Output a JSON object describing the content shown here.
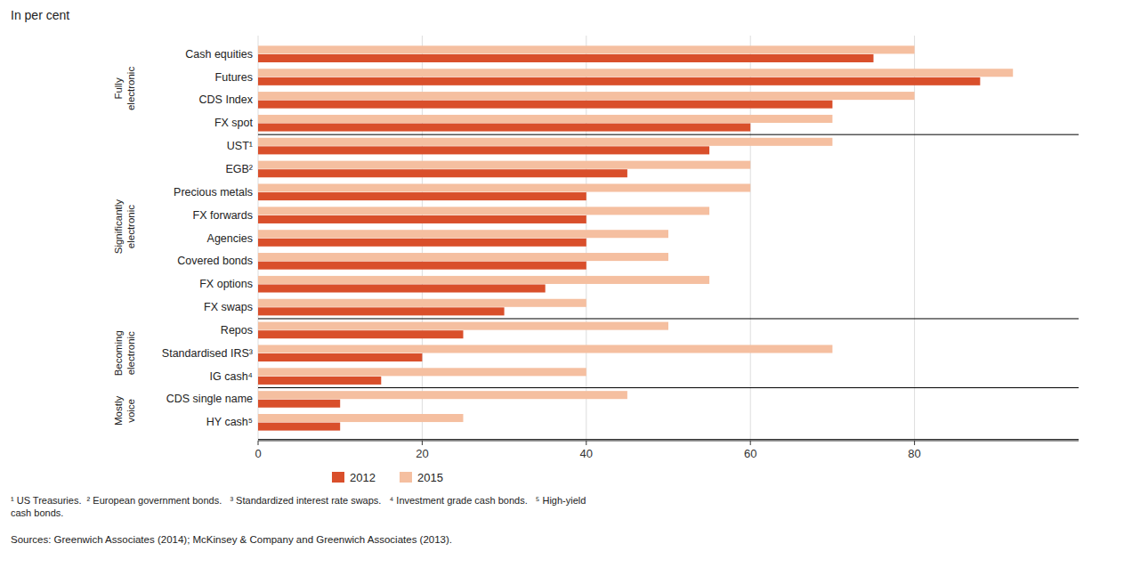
{
  "chart_data": {
    "type": "bar",
    "orientation": "horizontal",
    "title": "In per cent",
    "categories": [
      "Cash equities",
      "Futures",
      "CDS Index",
      "FX spot",
      "UST¹",
      "EGB²",
      "Precious metals",
      "FX forwards",
      "Agencies",
      "Covered bonds",
      "FX options",
      "FX swaps",
      "Repos",
      "Standardised IRS³",
      "IG cash⁴",
      "CDS single name",
      "HY cash⁵"
    ],
    "series": [
      {
        "name": "2012",
        "color": "#d94f2b",
        "values": [
          75,
          88,
          70,
          60,
          55,
          45,
          40,
          40,
          40,
          40,
          35,
          30,
          25,
          20,
          15,
          10,
          10
        ]
      },
      {
        "name": "2015",
        "color": "#f5bfa0",
        "values": [
          80,
          92,
          80,
          70,
          70,
          60,
          60,
          55,
          50,
          50,
          55,
          40,
          50,
          70,
          40,
          45,
          25
        ]
      }
    ],
    "groups": [
      {
        "label": "Fully\nelectronic",
        "size": 4
      },
      {
        "label": "Significantly\nelectronic",
        "size": 8
      },
      {
        "label": "Becoming\nelectronic",
        "size": 3
      },
      {
        "label": "Mostly\nvoice",
        "size": 2
      }
    ],
    "xlim": [
      0,
      100
    ],
    "xticks": [
      0,
      20,
      40,
      60,
      80
    ],
    "grid": true,
    "legend": "bottom",
    "footnote": "¹ US Treasuries.  ² European government bonds.   ³ Standardized interest rate swaps.   ⁴ Investment grade cash bonds.   ⁵ High-yield\ncash bonds.",
    "source": "Sources: Greenwich Associates (2014); McKinsey & Company and Greenwich Associates (2013)."
  }
}
